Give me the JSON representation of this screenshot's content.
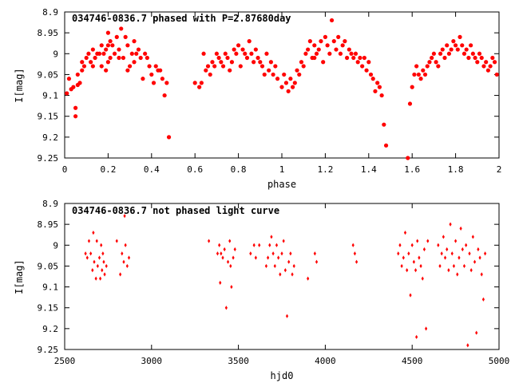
{
  "chart_data": [
    {
      "type": "scatter",
      "title": "034746-0836.7 phased with P=2.87680day",
      "xlabel": "phase",
      "ylabel": "I[mag]",
      "xlim": [
        0,
        2
      ],
      "ylim": [
        8.9,
        9.25
      ],
      "y_inverted": true,
      "grid": false,
      "marker_color": "#ff0000",
      "xticks": [
        0,
        0.2,
        0.4,
        0.6,
        0.8,
        1,
        1.2,
        1.4,
        1.6,
        1.8,
        2
      ],
      "xtick_labels": [
        "0",
        "0.2",
        "0.4",
        "0.6",
        "0.8",
        "1",
        "1.2",
        "1.4",
        "1.6",
        "1.8",
        "2"
      ],
      "yticks": [
        8.9,
        8.95,
        9,
        9.05,
        9.1,
        9.15,
        9.2,
        9.25
      ],
      "ytick_labels": [
        "8.9",
        "8.95",
        "9",
        "9.05",
        "9.1",
        "9.15",
        "9.2",
        "9.25"
      ],
      "points": [
        [
          0.01,
          9.095
        ],
        [
          0.02,
          9.06
        ],
        [
          0.03,
          9.085
        ],
        [
          0.04,
          9.08
        ],
        [
          0.05,
          9.13
        ],
        [
          0.05,
          9.15
        ],
        [
          0.06,
          9.075
        ],
        [
          0.06,
          9.05
        ],
        [
          0.07,
          9.07
        ],
        [
          0.08,
          9.04
        ],
        [
          0.08,
          9.02
        ],
        [
          0.09,
          9.03
        ],
        [
          0.1,
          9.01
        ],
        [
          0.11,
          9.0
        ],
        [
          0.12,
          9.02
        ],
        [
          0.13,
          9.03
        ],
        [
          0.13,
          8.99
        ],
        [
          0.14,
          9.01
        ],
        [
          0.15,
          9.0
        ],
        [
          0.16,
          9.0
        ],
        [
          0.17,
          8.98
        ],
        [
          0.17,
          9.03
        ],
        [
          0.18,
          9.0
        ],
        [
          0.19,
          8.99
        ],
        [
          0.19,
          9.04
        ],
        [
          0.2,
          8.98
        ],
        [
          0.2,
          9.02
        ],
        [
          0.21,
          9.01
        ],
        [
          0.2,
          8.95
        ],
        [
          0.21,
          8.97
        ],
        [
          0.22,
          8.98
        ],
        [
          0.23,
          9.0
        ],
        [
          0.24,
          8.96
        ],
        [
          0.25,
          8.99
        ],
        [
          0.25,
          9.01
        ],
        [
          0.26,
          8.94
        ],
        [
          0.27,
          9.01
        ],
        [
          0.28,
          8.96
        ],
        [
          0.29,
          8.98
        ],
        [
          0.29,
          9.04
        ],
        [
          0.3,
          9.03
        ],
        [
          0.31,
          9.0
        ],
        [
          0.32,
          8.97
        ],
        [
          0.32,
          9.02
        ],
        [
          0.33,
          9.0
        ],
        [
          0.34,
          8.99
        ],
        [
          0.35,
          9.01
        ],
        [
          0.36,
          9.06
        ],
        [
          0.37,
          9.0
        ],
        [
          0.38,
          9.01
        ],
        [
          0.39,
          9.03
        ],
        [
          0.4,
          9.05
        ],
        [
          0.41,
          9.07
        ],
        [
          0.42,
          9.03
        ],
        [
          0.43,
          9.04
        ],
        [
          0.44,
          9.04
        ],
        [
          0.45,
          9.06
        ],
        [
          0.46,
          9.1
        ],
        [
          0.47,
          9.07
        ],
        [
          0.48,
          9.2
        ],
        [
          0.6,
          9.07
        ],
        [
          0.62,
          9.08
        ],
        [
          0.63,
          9.07
        ],
        [
          0.64,
          9.0
        ],
        [
          0.65,
          9.04
        ],
        [
          0.66,
          9.03
        ],
        [
          0.67,
          9.05
        ],
        [
          0.68,
          9.02
        ],
        [
          0.69,
          9.03
        ],
        [
          0.7,
          9.0
        ],
        [
          0.71,
          9.01
        ],
        [
          0.72,
          9.02
        ],
        [
          0.73,
          9.03
        ],
        [
          0.74,
          9.0
        ],
        [
          0.75,
          9.01
        ],
        [
          0.76,
          9.04
        ],
        [
          0.77,
          9.02
        ],
        [
          0.78,
          8.99
        ],
        [
          0.79,
          9.0
        ],
        [
          0.8,
          8.98
        ],
        [
          0.81,
          9.03
        ],
        [
          0.82,
          8.99
        ],
        [
          0.83,
          9.0
        ],
        [
          0.84,
          9.01
        ],
        [
          0.85,
          8.97
        ],
        [
          0.86,
          9.0
        ],
        [
          0.87,
          9.02
        ],
        [
          0.88,
          8.99
        ],
        [
          0.89,
          9.01
        ],
        [
          0.9,
          9.02
        ],
        [
          0.91,
          9.03
        ],
        [
          0.92,
          9.05
        ],
        [
          0.93,
          9.0
        ],
        [
          0.94,
          9.04
        ],
        [
          0.95,
          9.02
        ],
        [
          0.96,
          9.05
        ],
        [
          0.97,
          9.03
        ],
        [
          0.98,
          9.06
        ],
        [
          1.0,
          9.08
        ],
        [
          1.01,
          9.05
        ],
        [
          1.02,
          9.07
        ],
        [
          1.03,
          9.09
        ],
        [
          1.04,
          9.06
        ],
        [
          1.05,
          9.08
        ],
        [
          1.06,
          9.07
        ],
        [
          1.07,
          9.04
        ],
        [
          1.08,
          9.05
        ],
        [
          1.09,
          9.02
        ],
        [
          1.1,
          9.03
        ],
        [
          1.11,
          9.0
        ],
        [
          1.12,
          8.99
        ],
        [
          1.13,
          8.97
        ],
        [
          1.14,
          9.01
        ],
        [
          1.15,
          8.98
        ],
        [
          1.16,
          9.0
        ],
        [
          1.17,
          8.99
        ],
        [
          1.18,
          8.97
        ],
        [
          1.19,
          9.02
        ],
        [
          1.2,
          8.96
        ],
        [
          1.21,
          8.98
        ],
        [
          1.22,
          9.0
        ],
        [
          1.23,
          8.92
        ],
        [
          1.24,
          8.97
        ],
        [
          1.25,
          8.99
        ],
        [
          1.26,
          8.96
        ],
        [
          1.27,
          9.0
        ],
        [
          1.28,
          8.98
        ],
        [
          1.29,
          8.97
        ],
        [
          1.3,
          9.01
        ],
        [
          1.31,
          8.99
        ],
        [
          1.32,
          9.0
        ],
        [
          1.33,
          9.01
        ],
        [
          1.34,
          9.0
        ],
        [
          1.35,
          9.02
        ],
        [
          1.36,
          9.01
        ],
        [
          1.37,
          9.03
        ],
        [
          1.38,
          9.01
        ],
        [
          1.39,
          9.04
        ],
        [
          1.4,
          9.02
        ],
        [
          1.41,
          9.05
        ],
        [
          1.42,
          9.06
        ],
        [
          1.43,
          9.09
        ],
        [
          1.44,
          9.07
        ],
        [
          1.45,
          9.08
        ],
        [
          1.46,
          9.1
        ],
        [
          1.47,
          9.17
        ],
        [
          1.48,
          9.22
        ],
        [
          1.58,
          9.25
        ],
        [
          1.59,
          9.12
        ],
        [
          1.6,
          9.08
        ],
        [
          1.61,
          9.05
        ],
        [
          1.62,
          9.03
        ],
        [
          1.63,
          9.05
        ],
        [
          1.64,
          9.06
        ],
        [
          1.65,
          9.04
        ],
        [
          1.66,
          9.05
        ],
        [
          1.67,
          9.03
        ],
        [
          1.68,
          9.02
        ],
        [
          1.69,
          9.01
        ],
        [
          1.7,
          9.0
        ],
        [
          1.71,
          9.02
        ],
        [
          1.72,
          9.03
        ],
        [
          1.73,
          9.0
        ],
        [
          1.74,
          8.99
        ],
        [
          1.75,
          9.01
        ],
        [
          1.76,
          8.98
        ],
        [
          1.77,
          9.0
        ],
        [
          1.78,
          8.99
        ],
        [
          1.79,
          8.97
        ],
        [
          1.8,
          8.98
        ],
        [
          1.81,
          8.99
        ],
        [
          1.82,
          8.96
        ],
        [
          1.83,
          8.98
        ],
        [
          1.84,
          9.0
        ],
        [
          1.85,
          8.99
        ],
        [
          1.86,
          9.01
        ],
        [
          1.87,
          8.98
        ],
        [
          1.88,
          9.0
        ],
        [
          1.89,
          9.01
        ],
        [
          1.9,
          9.02
        ],
        [
          1.91,
          9.0
        ],
        [
          1.92,
          9.01
        ],
        [
          1.93,
          9.03
        ],
        [
          1.94,
          9.02
        ],
        [
          1.95,
          9.04
        ],
        [
          1.96,
          9.03
        ],
        [
          1.97,
          9.01
        ],
        [
          1.98,
          9.02
        ],
        [
          1.99,
          9.05
        ],
        [
          1.15,
          9.01
        ]
      ]
    },
    {
      "type": "scatter",
      "title": "034746-0836.7 not phased light curve",
      "xlabel": "hjd0",
      "ylabel": "I[mag]",
      "xlim": [
        2500,
        5000
      ],
      "ylim": [
        8.9,
        9.25
      ],
      "y_inverted": true,
      "grid": false,
      "marker_color": "#ff0000",
      "xticks": [
        2500,
        3000,
        3500,
        4000,
        4500,
        5000
      ],
      "xtick_labels": [
        "2500",
        "3000",
        "3500",
        "4000",
        "4500",
        "5000"
      ],
      "yticks": [
        8.9,
        8.95,
        9,
        9.05,
        9.1,
        9.15,
        9.2,
        9.25
      ],
      "ytick_labels": [
        "8.9",
        "8.95",
        "9",
        "9.05",
        "9.1",
        "9.15",
        "9.2",
        "9.25"
      ],
      "points": [
        [
          2620,
          9.02
        ],
        [
          2630,
          9.03
        ],
        [
          2640,
          8.99
        ],
        [
          2650,
          9.02
        ],
        [
          2660,
          9.06
        ],
        [
          2665,
          8.97
        ],
        [
          2670,
          9.04
        ],
        [
          2680,
          9.08
        ],
        [
          2685,
          8.99
        ],
        [
          2690,
          9.05
        ],
        [
          2700,
          9.03
        ],
        [
          2705,
          9.08
        ],
        [
          2710,
          9.0
        ],
        [
          2715,
          9.06
        ],
        [
          2720,
          9.02
        ],
        [
          2725,
          9.04
        ],
        [
          2730,
          9.07
        ],
        [
          2740,
          9.05
        ],
        [
          2800,
          8.99
        ],
        [
          2820,
          9.07
        ],
        [
          2830,
          9.02
        ],
        [
          2840,
          9.04
        ],
        [
          2845,
          8.93
        ],
        [
          2850,
          9.0
        ],
        [
          2860,
          9.05
        ],
        [
          2870,
          9.03
        ],
        [
          3330,
          8.99
        ],
        [
          3380,
          9.02
        ],
        [
          3390,
          9.0
        ],
        [
          3395,
          9.09
        ],
        [
          3400,
          9.02
        ],
        [
          3410,
          9.03
        ],
        [
          3420,
          9.01
        ],
        [
          3430,
          9.15
        ],
        [
          3440,
          9.04
        ],
        [
          3450,
          8.99
        ],
        [
          3455,
          9.05
        ],
        [
          3460,
          9.1
        ],
        [
          3470,
          9.03
        ],
        [
          3480,
          9.01
        ],
        [
          3570,
          9.02
        ],
        [
          3590,
          9.0
        ],
        [
          3600,
          9.03
        ],
        [
          3620,
          9.0
        ],
        [
          3660,
          9.05
        ],
        [
          3670,
          9.03
        ],
        [
          3680,
          9.0
        ],
        [
          3690,
          8.98
        ],
        [
          3700,
          9.02
        ],
        [
          3710,
          9.05
        ],
        [
          3720,
          9.0
        ],
        [
          3730,
          9.03
        ],
        [
          3740,
          9.07
        ],
        [
          3750,
          9.02
        ],
        [
          3760,
          8.99
        ],
        [
          3770,
          9.06
        ],
        [
          3780,
          9.17
        ],
        [
          3790,
          9.04
        ],
        [
          3800,
          9.02
        ],
        [
          3810,
          9.07
        ],
        [
          3820,
          9.05
        ],
        [
          3900,
          9.08
        ],
        [
          3940,
          9.02
        ],
        [
          3950,
          9.04
        ],
        [
          4160,
          9.0
        ],
        [
          4170,
          9.02
        ],
        [
          4180,
          9.04
        ],
        [
          4420,
          9.02
        ],
        [
          4430,
          9.0
        ],
        [
          4440,
          9.05
        ],
        [
          4450,
          9.03
        ],
        [
          4460,
          8.97
        ],
        [
          4470,
          9.06
        ],
        [
          4480,
          9.02
        ],
        [
          4490,
          9.12
        ],
        [
          4500,
          9.0
        ],
        [
          4510,
          9.04
        ],
        [
          4520,
          9.06
        ],
        [
          4525,
          9.22
        ],
        [
          4530,
          8.99
        ],
        [
          4540,
          9.03
        ],
        [
          4550,
          9.05
        ],
        [
          4560,
          9.08
        ],
        [
          4570,
          9.01
        ],
        [
          4580,
          9.2
        ],
        [
          4590,
          8.99
        ],
        [
          4650,
          9.0
        ],
        [
          4660,
          9.05
        ],
        [
          4670,
          9.02
        ],
        [
          4680,
          8.98
        ],
        [
          4690,
          9.03
        ],
        [
          4700,
          9.01
        ],
        [
          4710,
          9.06
        ],
        [
          4720,
          8.95
        ],
        [
          4730,
          9.02
        ],
        [
          4740,
          9.05
        ],
        [
          4750,
          8.99
        ],
        [
          4760,
          9.07
        ],
        [
          4770,
          9.03
        ],
        [
          4780,
          8.96
        ],
        [
          4790,
          9.01
        ],
        [
          4800,
          9.05
        ],
        [
          4810,
          9.0
        ],
        [
          4820,
          9.24
        ],
        [
          4830,
          9.02
        ],
        [
          4840,
          9.06
        ],
        [
          4850,
          8.98
        ],
        [
          4860,
          9.04
        ],
        [
          4870,
          9.21
        ],
        [
          4880,
          9.01
        ],
        [
          4890,
          9.03
        ],
        [
          4900,
          9.07
        ],
        [
          4910,
          9.13
        ],
        [
          4920,
          9.02
        ]
      ]
    }
  ]
}
